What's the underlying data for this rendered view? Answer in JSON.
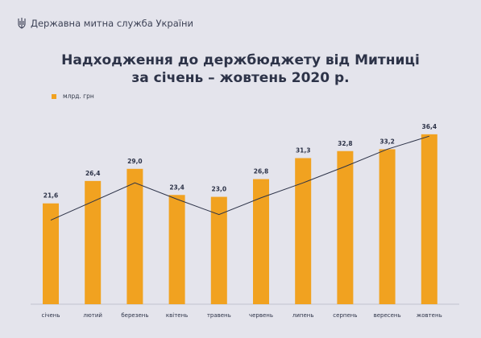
{
  "header": {
    "org": "Державна митна служба України",
    "logo_icon": "trident-icon"
  },
  "chart_data": {
    "type": "bar",
    "title_line1": "Надходження до держбюджету від Митниці",
    "title_line2": "за січень – жовтень 2020 р.",
    "legend": "млрд. грн",
    "categories": [
      "січень",
      "лютий",
      "березень",
      "квітень",
      "травень",
      "червень",
      "липень",
      "серпень",
      "вересень",
      "жовтень"
    ],
    "values": [
      21.6,
      26.4,
      29.0,
      23.4,
      23.0,
      26.8,
      31.3,
      32.8,
      33.2,
      36.4
    ],
    "value_labels": [
      "21,6",
      "26,4",
      "29,0",
      "23,4",
      "23,0",
      "26,8",
      "31,3",
      "32,8",
      "33,2",
      "36,4"
    ],
    "trend_line": [
      18.0,
      22.0,
      26.0,
      22.5,
      19.2,
      22.8,
      26.0,
      29.5,
      33.2,
      36.0
    ],
    "bar_color": "#f1a220",
    "line_color": "#2d3348",
    "background_color": "#e4e4ec"
  }
}
